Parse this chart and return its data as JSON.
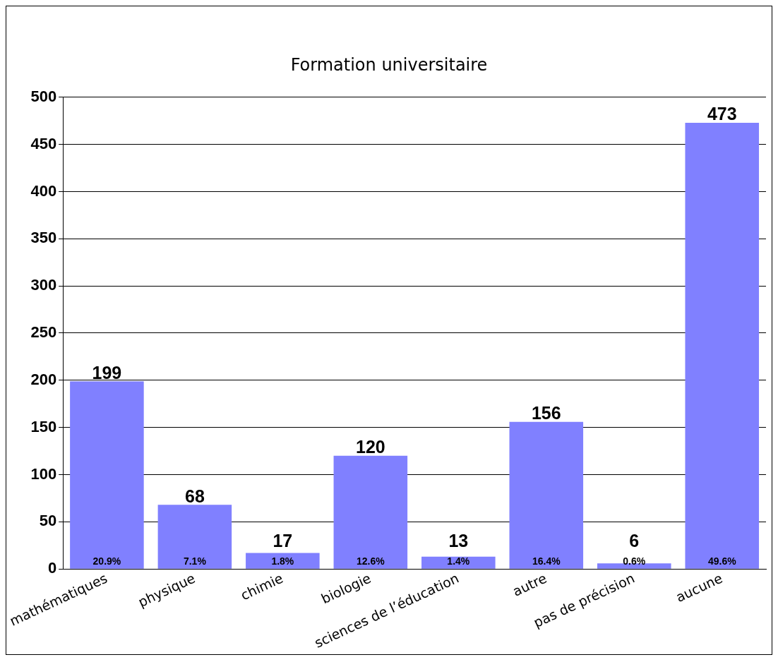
{
  "chart_data": {
    "type": "bar",
    "title": "Formation universitaire",
    "categories": [
      "mathématiques",
      "physique",
      "chimie",
      "biologie",
      "sciences de l’éducation",
      "autre",
      "pas de précision",
      "aucune"
    ],
    "values": [
      199,
      68,
      17,
      120,
      13,
      156,
      6,
      473
    ],
    "color": "#8080ff",
    "ylim": [
      0,
      500
    ],
    "yticks": [
      0,
      50,
      100,
      150,
      200,
      250,
      300,
      350,
      400,
      450,
      500
    ],
    "grid": "y",
    "legend": false,
    "data_labels": true,
    "annotations": [
      "20.9%",
      "7.1%",
      "1.8%",
      "12.6%",
      "1.4%",
      "16.4%",
      "0.6%",
      "49.6%"
    ]
  }
}
